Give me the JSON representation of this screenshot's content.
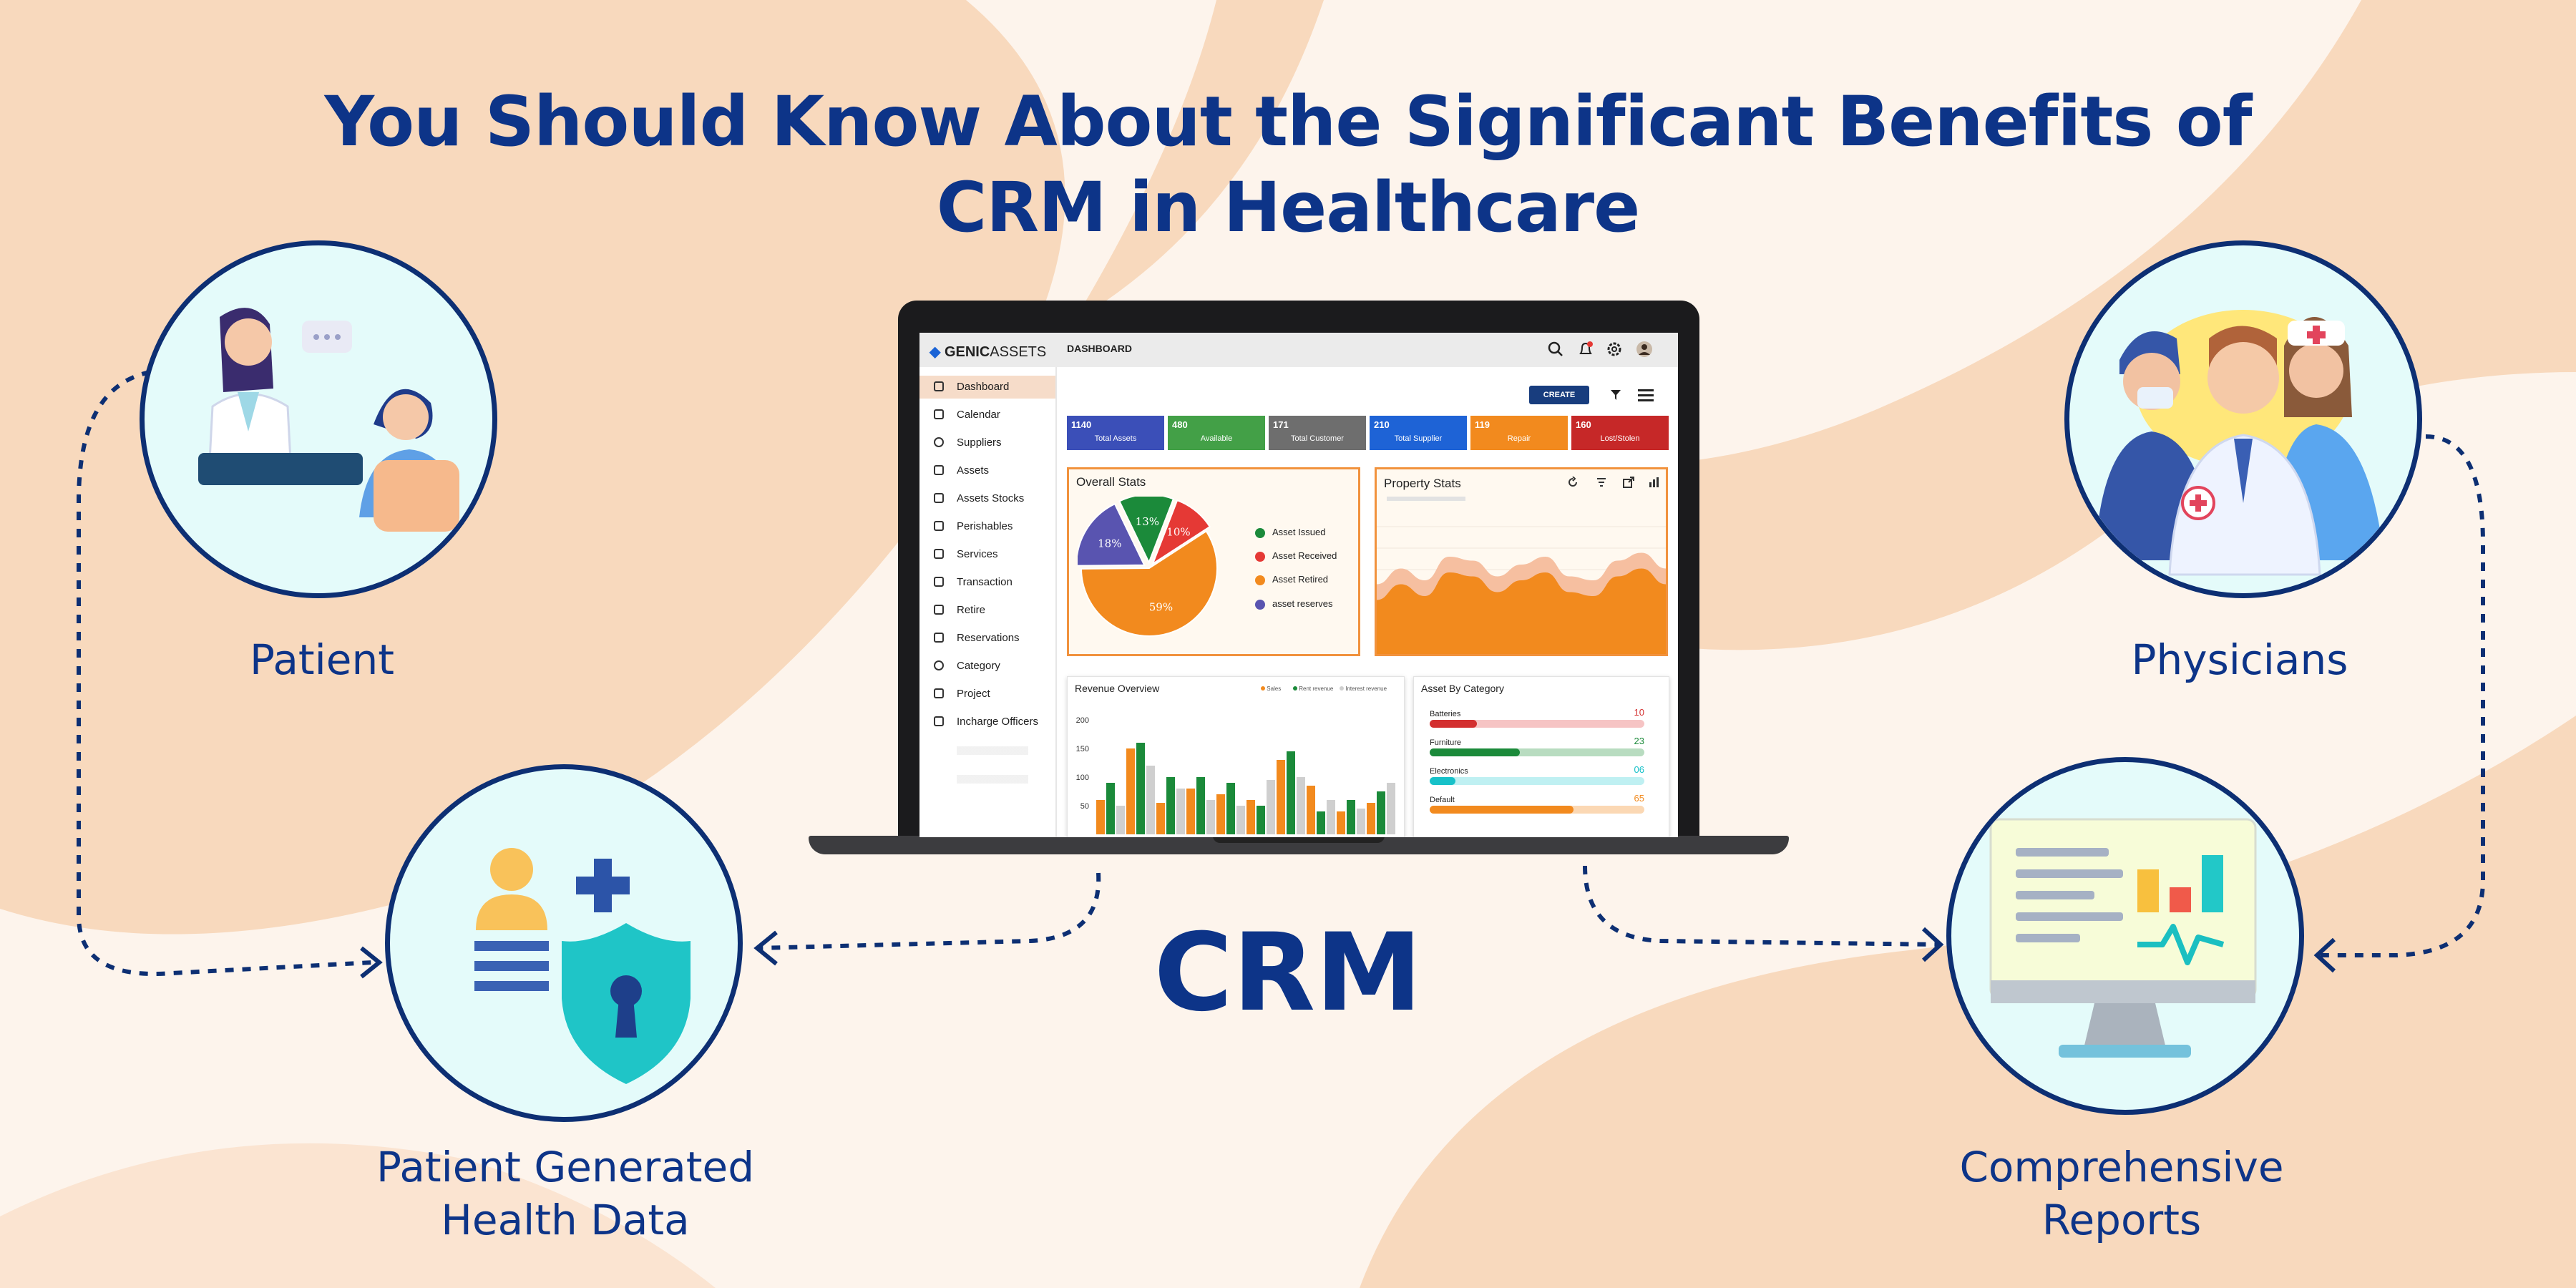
{
  "title_line1": "You Should Know About the Significant Benefits of",
  "title_line2": "CRM in Healthcare",
  "center_label": "CRM",
  "nodes": {
    "patient": "Patient",
    "physicians": "Physicians",
    "phgd_line1": "Patient Generated",
    "phgd_line2": "Health Data",
    "reports_line1": "Comprehensive",
    "reports_line2": "Reports"
  },
  "icons": [
    "doctor-patient-consultation-icon",
    "medical-staff-group-icon",
    "health-data-security-icon",
    "report-monitor-icon",
    "laptop-icon"
  ],
  "colors": {
    "navy": "#0d3488",
    "peach": "#f8d9bd",
    "circle_bg": "#e4fbfa",
    "accent_orange": "#f28a1e"
  },
  "dashboard": {
    "logo_prefix": "GENIC",
    "logo_suffix": "ASSETS",
    "page_title": "DASHBOARD",
    "create_label": "CREATE",
    "sidebar": [
      "Dashboard",
      "Calendar",
      "Suppliers",
      "Assets",
      "Assets Stocks",
      "Perishables",
      "Services",
      "Transaction",
      "Retire",
      "Reservations",
      "Category",
      "Project",
      "Incharge Officers"
    ],
    "kpis": [
      {
        "value": "1140",
        "label": "Total Assets",
        "color": "#3b4fb8"
      },
      {
        "value": "480",
        "label": "Available",
        "color": "#43a047"
      },
      {
        "value": "171",
        "label": "Total Customer",
        "color": "#6e6e6e"
      },
      {
        "value": "210",
        "label": "Total Supplier",
        "color": "#1e63d6"
      },
      {
        "value": "119",
        "label": "Repair",
        "color": "#f28a1e"
      },
      {
        "value": "160",
        "label": "Lost/Stolen",
        "color": "#c62828"
      }
    ],
    "overall_stats": {
      "title": "Overall Stats",
      "legend": [
        {
          "label": "Asset Issued",
          "color": "#1b8a3a"
        },
        {
          "label": "Asset Received",
          "color": "#e53935"
        },
        {
          "label": "Asset Retired",
          "color": "#f28a1e"
        },
        {
          "label": "asset reserves",
          "color": "#5954b0"
        }
      ]
    },
    "property_stats": {
      "title": "Property Stats"
    },
    "revenue_overview": {
      "title": "Revenue Overview",
      "legend": [
        "Sales",
        "Rent revenue",
        "Interest revenue"
      ]
    },
    "asset_by_category": {
      "title": "Asset By Category",
      "items": [
        {
          "label": "Batteries",
          "value": "10",
          "pct": 0.22,
          "color": "#d32f2f",
          "track": "#f6c4c4"
        },
        {
          "label": "Furniture",
          "value": "23",
          "pct": 0.42,
          "color": "#1b8a3a",
          "track": "#b8dcc0"
        },
        {
          "label": "Electronics",
          "value": "06",
          "pct": 0.12,
          "color": "#17c1c9",
          "track": "#bff0f2"
        },
        {
          "label": "Default",
          "value": "65",
          "pct": 0.67,
          "color": "#f28a1e",
          "track": "#fbd8b4"
        }
      ]
    }
  },
  "chart_data": [
    {
      "type": "pie",
      "title": "Overall Stats",
      "labels": [
        "Asset Issued",
        "Asset Received",
        "Asset Retired",
        "asset reserves"
      ],
      "values": [
        13,
        10,
        59,
        18
      ],
      "colors": [
        "#1b8a3a",
        "#e53935",
        "#f28a1e",
        "#5954b0"
      ]
    },
    {
      "type": "bar",
      "title": "Revenue Overview",
      "ylim": [
        0,
        200
      ],
      "yticks": [
        200,
        150,
        100,
        50
      ],
      "series": [
        {
          "name": "Sales",
          "color": "#f28a1e",
          "values": [
            60,
            150,
            55,
            80,
            70,
            60,
            130,
            85,
            40,
            55
          ]
        },
        {
          "name": "Rent revenue",
          "color": "#1b8a3a",
          "values": [
            90,
            160,
            100,
            100,
            90,
            50,
            145,
            40,
            60,
            75
          ]
        },
        {
          "name": "Interest revenue",
          "color": "#cfcfcf",
          "values": [
            50,
            120,
            80,
            60,
            50,
            95,
            100,
            60,
            45,
            90
          ]
        }
      ]
    },
    {
      "type": "area",
      "title": "Property Stats",
      "values": [
        0.55,
        0.35,
        0.5,
        0.2,
        0.25,
        0.45,
        0.3,
        0.2,
        0.45,
        0.5,
        0.25,
        0.15,
        0.35
      ],
      "color": "#f28a1e"
    }
  ]
}
